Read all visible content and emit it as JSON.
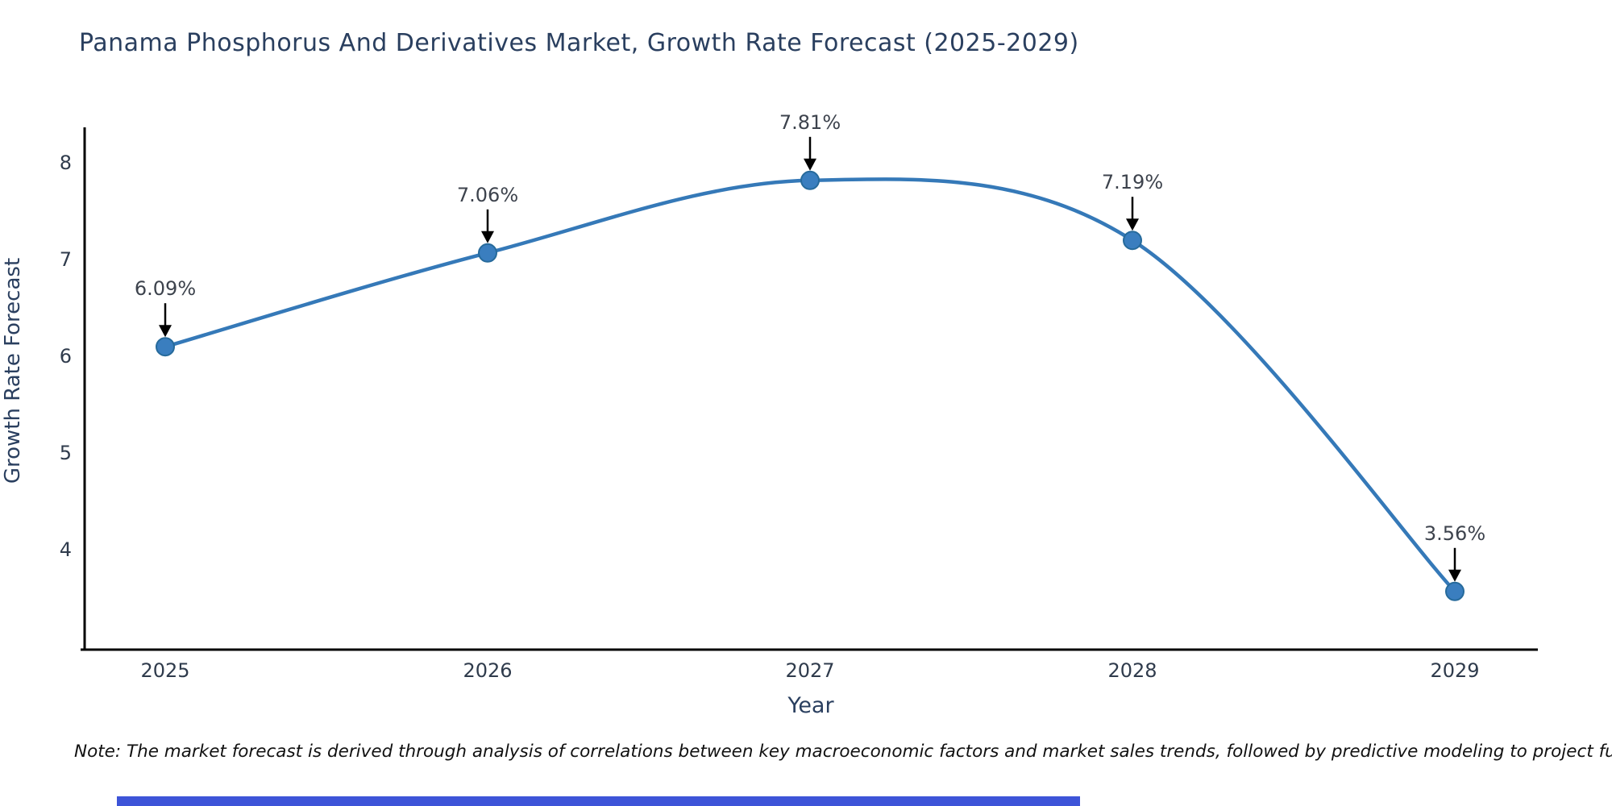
{
  "page": {
    "note": "Note: The market forecast is derived through analysis of correlations between key macroeconomic factors and market sales trends, followed by predictive modeling to project future sales."
  },
  "chart_data": {
    "type": "line",
    "title": "Panama Phosphorus And Derivatives Market, Growth Rate Forecast (2025-2029)",
    "xlabel": "Year",
    "ylabel": "Growth Rate Forecast",
    "x": [
      2025,
      2026,
      2027,
      2028,
      2029
    ],
    "y": [
      6.09,
      7.06,
      7.81,
      7.19,
      3.56
    ],
    "point_labels": [
      "6.09%",
      "7.06%",
      "7.81%",
      "7.19%",
      "3.56%"
    ],
    "yticks": [
      4,
      5,
      6,
      7,
      8
    ],
    "xticks": [
      "2025",
      "2026",
      "2027",
      "2028",
      "2029"
    ],
    "ylim": [
      2.95,
      8.35
    ],
    "line_shape": "spline",
    "grid": false,
    "legend": "none",
    "colors": {
      "line": "#3579b8",
      "marker_fill": "#3a7ebf",
      "marker_edge": "#266a9b",
      "axis_line": "#000000",
      "tick_text": "#2f3b4c",
      "annotation_text": "#3d434d",
      "arrow": "#000000",
      "title_text": "#2a3f5f",
      "bottom_bar": "#3d54d8"
    }
  }
}
